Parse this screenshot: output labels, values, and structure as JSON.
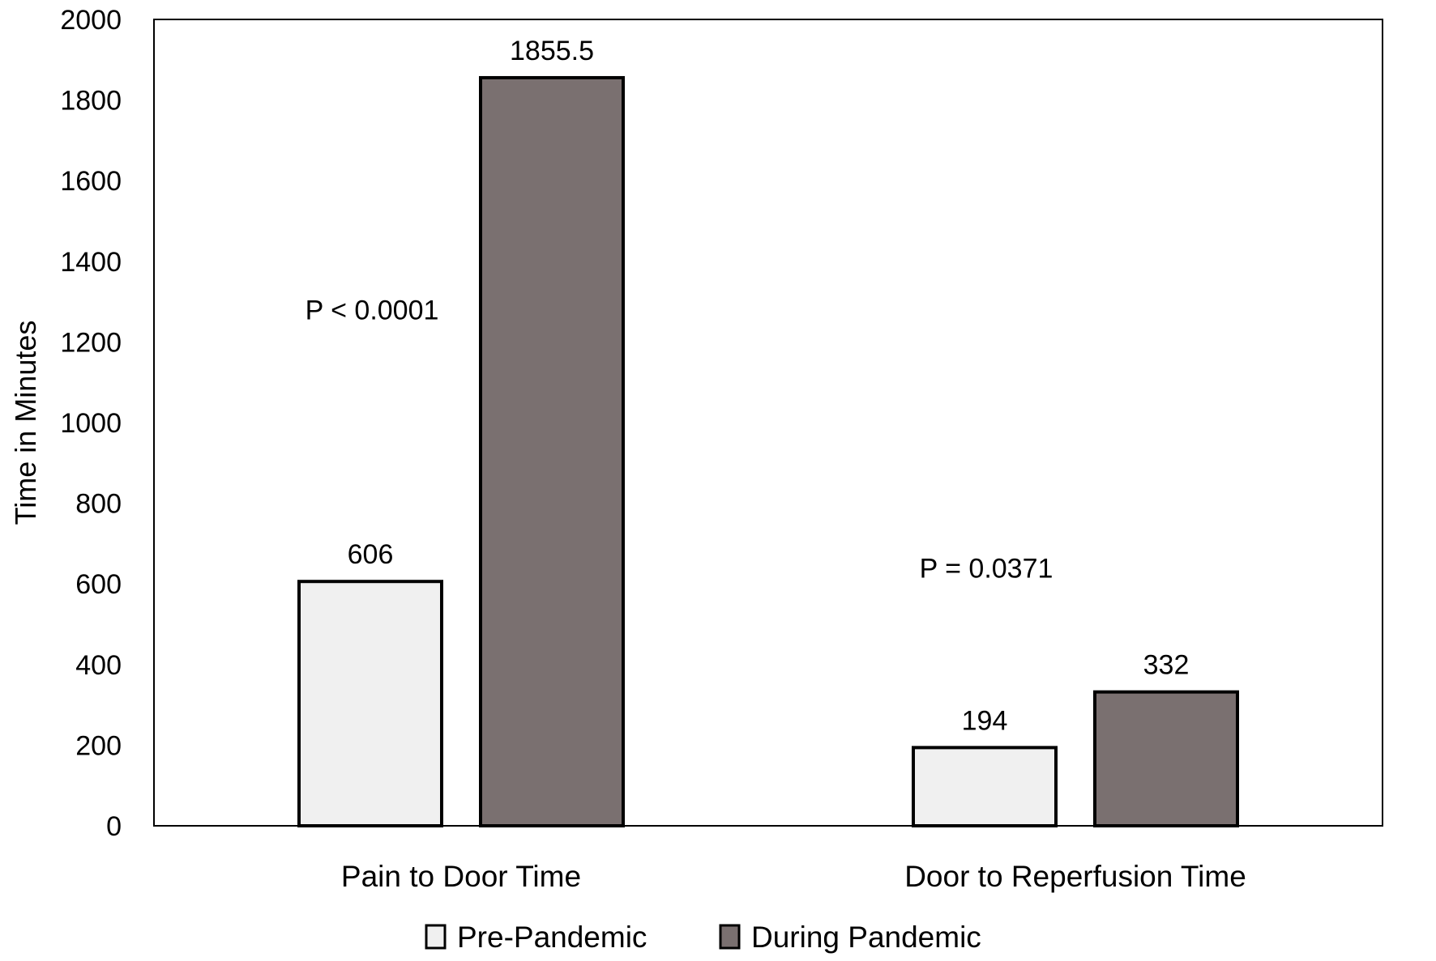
{
  "chart_data": {
    "type": "bar",
    "title": "",
    "xlabel": "",
    "ylabel": "Time in Minutes",
    "ylim": [
      0,
      2000
    ],
    "yticks": [
      0,
      200,
      400,
      600,
      800,
      1000,
      1200,
      1400,
      1600,
      1800,
      2000
    ],
    "grid": false,
    "legend_position": "bottom",
    "categories": [
      "Pain to Door Time",
      "Door to Reperfusion Time"
    ],
    "series": [
      {
        "name": "Pre-Pandemic",
        "color": "#f0f0f0",
        "values": [
          606,
          194
        ],
        "labels": [
          "606",
          "194"
        ]
      },
      {
        "name": "During Pandemic",
        "color": "#7a7070",
        "values": [
          1855.5,
          332
        ],
        "labels": [
          "1855.5",
          "332"
        ]
      }
    ],
    "annotations": [
      {
        "category": 0,
        "text": "P < 0.0001",
        "y": 1280
      },
      {
        "category": 1,
        "text": "P = 0.0371",
        "y": 640
      }
    ],
    "colors": {
      "bar_stroke": "#000000",
      "axis": "#000000"
    }
  }
}
